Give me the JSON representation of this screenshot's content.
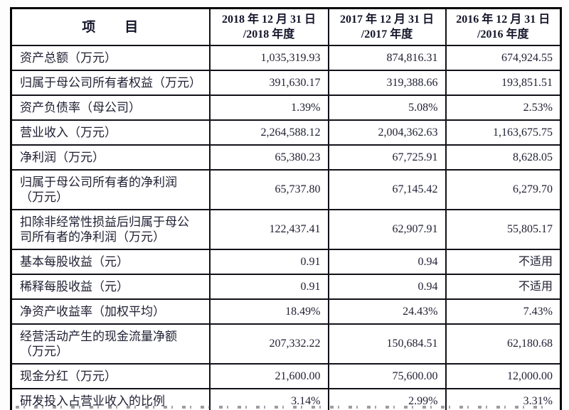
{
  "colors": {
    "ink": "#1f1f33",
    "border": "#111118",
    "background": "#fdfdfd"
  },
  "table": {
    "header": {
      "item_label": "项　　目",
      "columns": [
        {
          "line1": "2018 年 12 月 31 日",
          "line2": "/2018 年度"
        },
        {
          "line1": "2017 年 12 月 31 日",
          "line2": "/2017 年度"
        },
        {
          "line1": "2016 年 12 月 31 日",
          "line2": "/2016 年度"
        }
      ]
    },
    "rows": [
      {
        "label": "资产总额（万元）",
        "values": [
          "1,035,319.93",
          "874,816.31",
          "674,924.55"
        ]
      },
      {
        "label": "归属于母公司所有者权益（万元）",
        "values": [
          "391,630.17",
          "319,388.66",
          "193,851.51"
        ]
      },
      {
        "label": "资产负债率（母公司）",
        "values": [
          "1.39%",
          "5.08%",
          "2.53%"
        ]
      },
      {
        "label": "营业收入（万元）",
        "values": [
          "2,264,588.12",
          "2,004,362.63",
          "1,163,675.75"
        ]
      },
      {
        "label": "净利润（万元）",
        "values": [
          "65,380.23",
          "67,725.91",
          "8,628.05"
        ]
      },
      {
        "label": "归属于母公司所有者的净利润\n（万元）",
        "values": [
          "65,737.80",
          "67,145.42",
          "6,279.70"
        ]
      },
      {
        "label": "扣除非经常性损益后归属于母公\n司所有者的净利润（万元）",
        "values": [
          "122,437.41",
          "62,907.91",
          "55,805.17"
        ]
      },
      {
        "label": "基本每股收益（元）",
        "values": [
          "0.91",
          "0.94",
          "不适用"
        ]
      },
      {
        "label": "稀释每股收益（元）",
        "values": [
          "0.91",
          "0.94",
          "不适用"
        ]
      },
      {
        "label": "净资产收益率（加权平均）",
        "values": [
          "18.49%",
          "24.43%",
          "7.43%"
        ]
      },
      {
        "label": "经营活动产生的现金流量净额\n（万元）",
        "values": [
          "207,332.22",
          "150,684.51",
          "62,180.68"
        ]
      },
      {
        "label": "现金分红（万元）",
        "values": [
          "21,600.00",
          "75,600.00",
          "12,000.00"
        ]
      },
      {
        "label": "研发投入占营业收入的比例",
        "values": [
          "3.14%",
          "2.99%",
          "3.31%"
        ]
      }
    ]
  }
}
